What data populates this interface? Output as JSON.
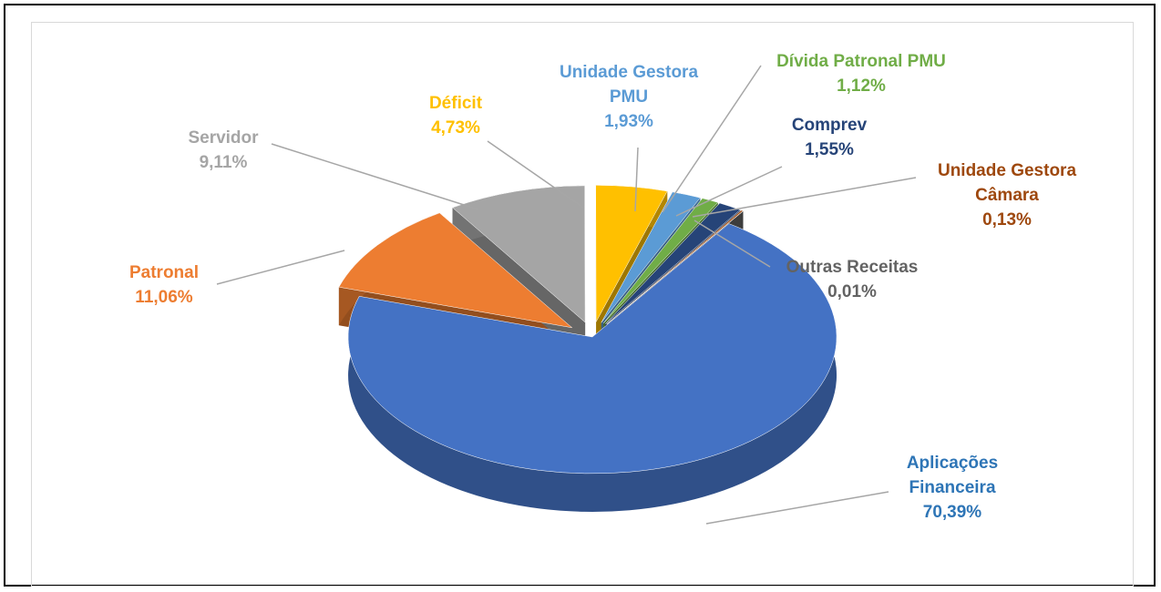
{
  "chart_data": {
    "type": "pie3d",
    "categories": [
      "Aplicações Financeira",
      "Patronal",
      "Servidor",
      "Déficit",
      "Unidade Gestora PMU",
      "Dívida Patronal PMU",
      "Comprev",
      "Unidade Gestora Câmara",
      "Outras Receitas"
    ],
    "values": [
      70.39,
      11.06,
      9.11,
      4.73,
      1.93,
      1.12,
      1.55,
      0.13,
      0.01
    ],
    "value_labels": [
      "70,39%",
      "11,06%",
      "9,11%",
      "4,73%",
      "1,93%",
      "1,12%",
      "1,55%",
      "0,13%",
      "0,01%"
    ],
    "colors": [
      "#4472c4",
      "#ed7d31",
      "#a5a5a5",
      "#ffc000",
      "#5b9bd5",
      "#70ad47",
      "#264478",
      "#9e480e",
      "#636363"
    ]
  }
}
